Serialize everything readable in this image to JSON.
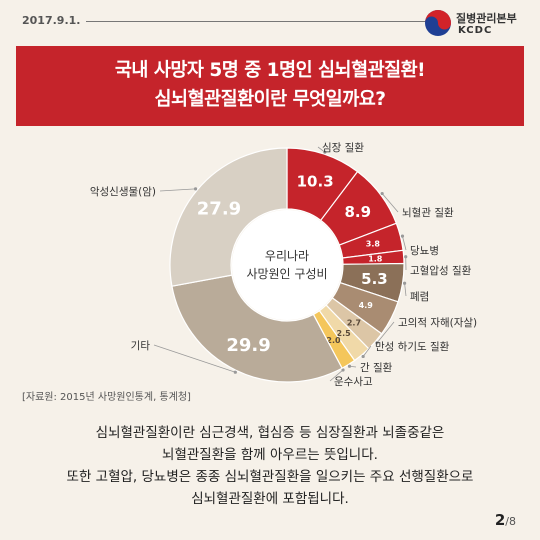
{
  "header": {
    "date": "2017.9.1.",
    "org_name": "질병관리본부",
    "org_abbr": "KCDC"
  },
  "banner": {
    "title_line1": "국내 사망자 5명 중 1명인 심뇌혈관질환!",
    "title_line2": "심뇌혈관질환이란 무엇일까요?"
  },
  "chart_data": {
    "type": "pie",
    "center_label": [
      "우리나라",
      "사망원인 구성비"
    ],
    "slices": [
      {
        "label": "심장 질환",
        "value": 10.3,
        "color": "#c5242b",
        "value_label": "10.3"
      },
      {
        "label": "뇌혈관 질환",
        "value": 8.9,
        "color": "#c5242b",
        "value_label": "8.9"
      },
      {
        "label": "당뇨병",
        "value": 3.8,
        "color": "#c5242b",
        "value_label": "3.8"
      },
      {
        "label": "고혈압성 질환",
        "value": 1.8,
        "color": "#c5242b",
        "value_label": "1.8"
      },
      {
        "label": "폐렴",
        "value": 5.3,
        "color": "#8b7058",
        "value_label": "5.3"
      },
      {
        "label": "",
        "value": 4.9,
        "color": "#a98c72",
        "value_label": "4.9"
      },
      {
        "label": "고의적 자해(자살)",
        "value": 2.7,
        "color": "#dcc6a6",
        "value_label": "2.7"
      },
      {
        "label": "만성 하기도 질환",
        "value": 2.5,
        "color": "#f0d9a8",
        "value_label": "2.5"
      },
      {
        "label": "간 질환",
        "value": 2.0,
        "color": "#f4c65b",
        "value_label": "2.0"
      },
      {
        "label": "운수사고",
        "value": 0,
        "color": "#f4c65b",
        "value_label": ""
      },
      {
        "label": "기타",
        "value": 29.9,
        "color": "#b9ab99",
        "value_label": "29.9"
      },
      {
        "label": "악성신생물(암)",
        "value": 27.9,
        "color": "#d8d0c4",
        "value_label": "27.9"
      }
    ]
  },
  "source": "[자료원: 2015년 사망원인통계, 통계청]",
  "body": {
    "line1": "심뇌혈관질환이란 심근경색, 협심증 등 심장질환과 뇌졸중같은",
    "line2": "뇌혈관질환을 함께 아우르는 뜻입니다.",
    "line3": "또한 고혈압, 당뇨병은 종종 심뇌혈관질환을 일으키는 주요 선행질환으로",
    "line4": "심뇌혈관질환에 포함됩니다."
  },
  "page": {
    "current": "2",
    "total": "/8"
  },
  "colors": {
    "accent_red": "#c5242b",
    "background": "#f6f1e9"
  }
}
